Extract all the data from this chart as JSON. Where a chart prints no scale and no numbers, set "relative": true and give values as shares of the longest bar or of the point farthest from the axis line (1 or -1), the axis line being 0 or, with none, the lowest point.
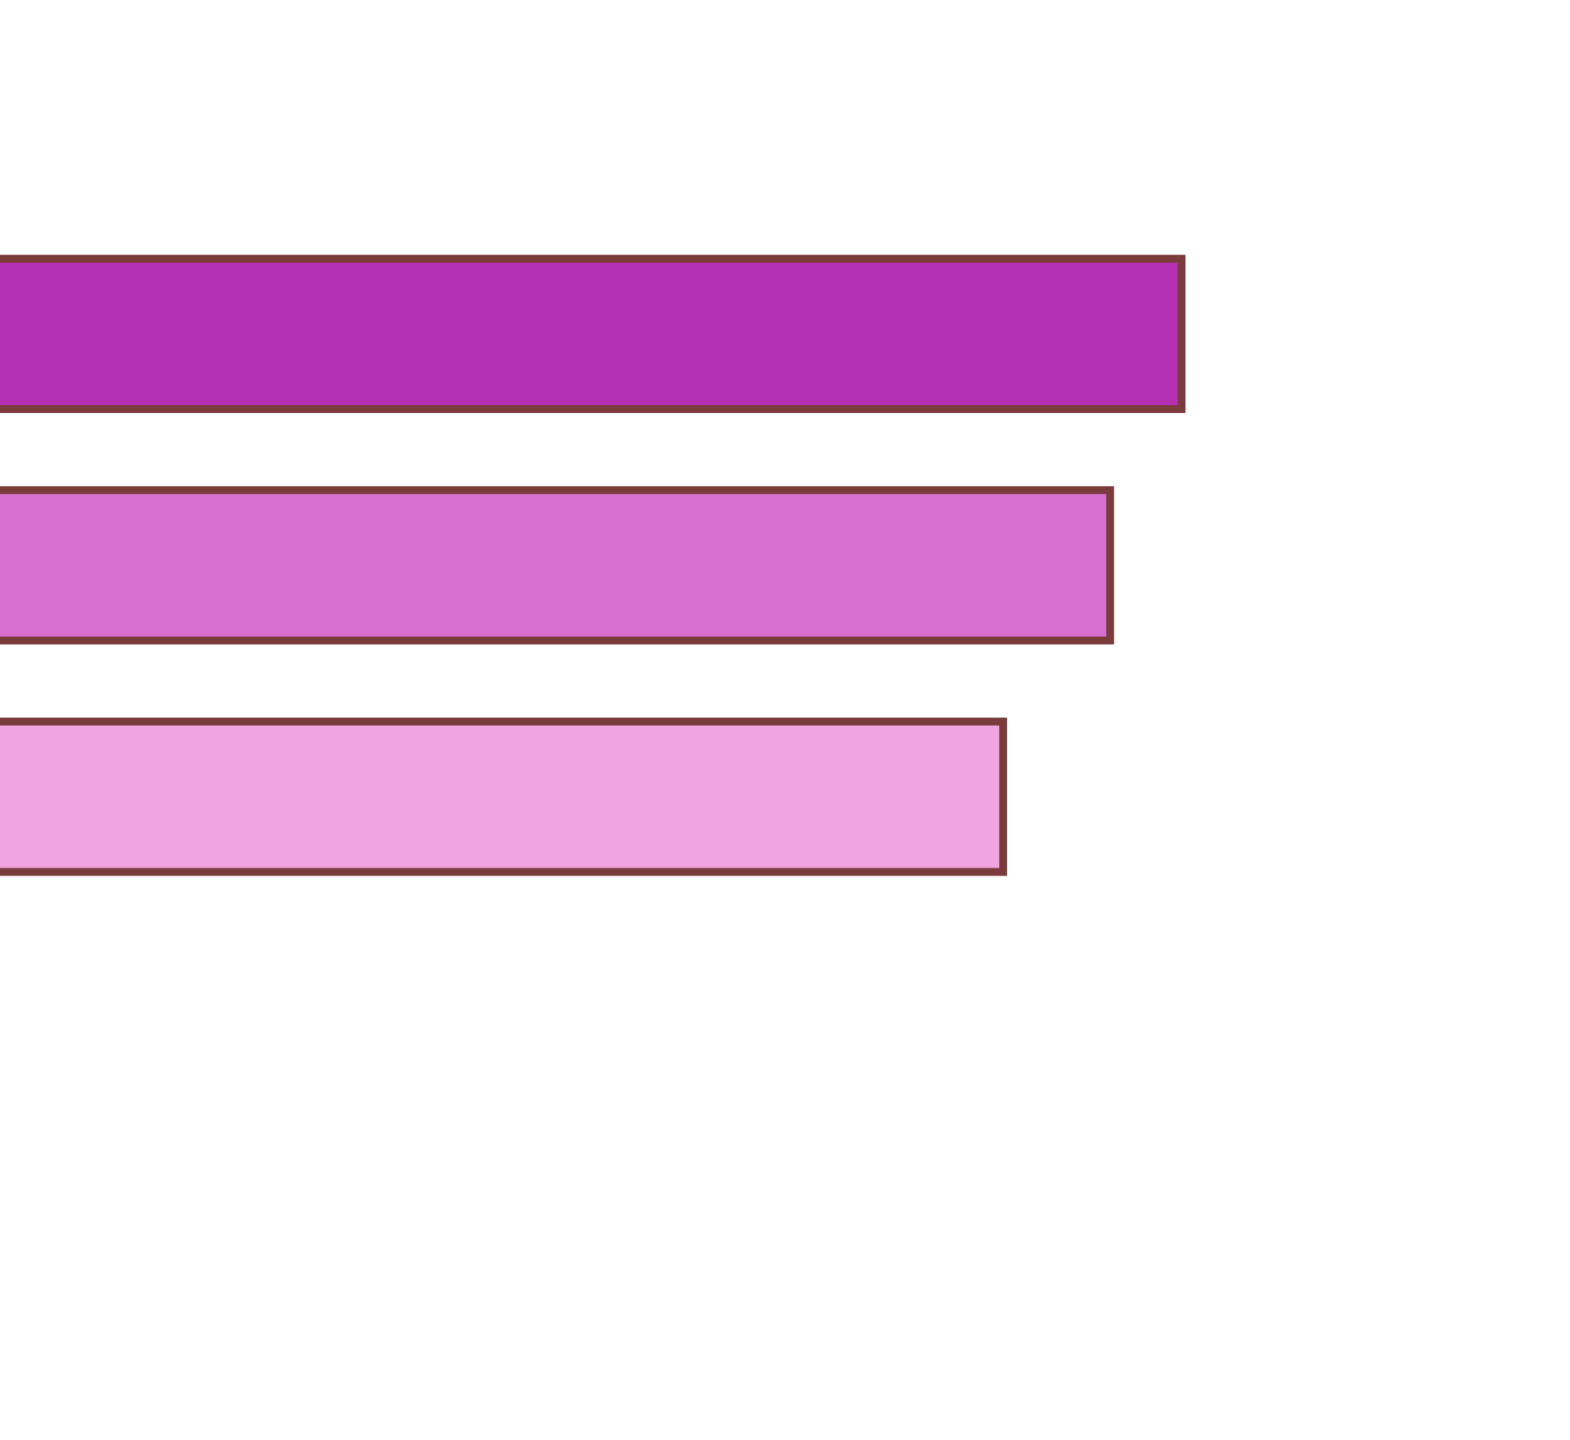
{
  "chart_data": {
    "type": "bar",
    "orientation": "horizontal",
    "relative": true,
    "categories": [
      null,
      null,
      null
    ],
    "values": [
      1,
      0.94,
      0.85
    ],
    "colors": [
      "#b52fb5",
      "#d66fcf",
      "#f0a5e2"
    ]
  }
}
